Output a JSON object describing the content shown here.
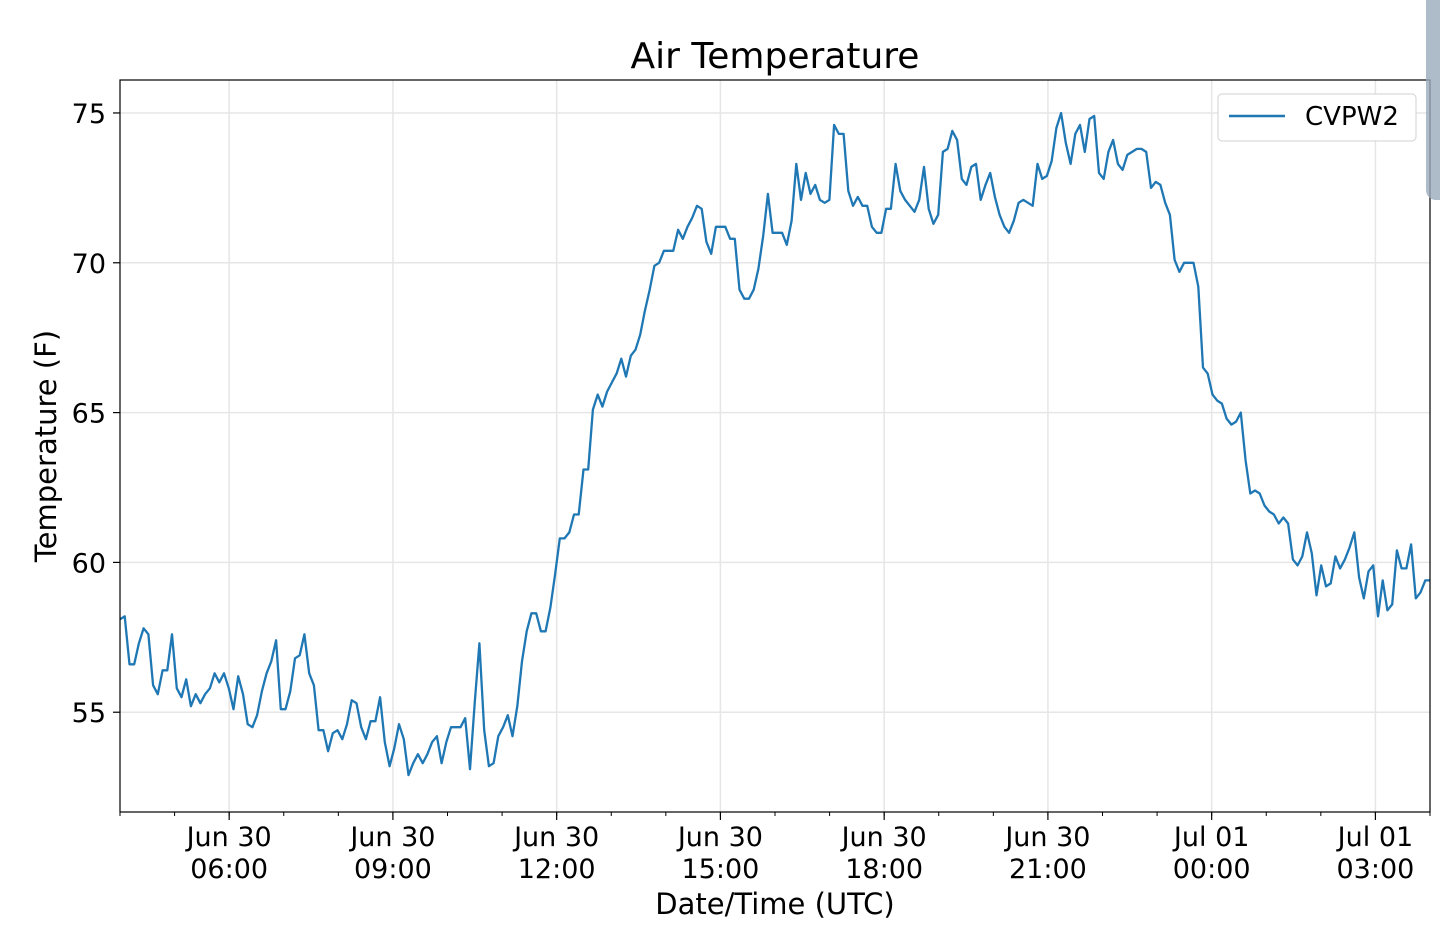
{
  "chart_data": {
    "type": "line",
    "title": "Air Temperature",
    "xlabel": "Date/Time (UTC)",
    "ylabel": "Temperature (F)",
    "x_units": "hours since Jun 30 00:00 UTC",
    "xlim": [
      4,
      28
    ],
    "ylim": [
      51.67,
      76.1
    ],
    "grid": true,
    "legend_position": "top-right",
    "y_ticks": [
      55,
      60,
      65,
      70,
      75
    ],
    "x_ticks": [
      {
        "value": 6,
        "line1": "Jun 30",
        "line2": "06:00"
      },
      {
        "value": 9,
        "line1": "Jun 30",
        "line2": "09:00"
      },
      {
        "value": 12,
        "line1": "Jun 30",
        "line2": "12:00"
      },
      {
        "value": 15,
        "line1": "Jun 30",
        "line2": "15:00"
      },
      {
        "value": 18,
        "line1": "Jun 30",
        "line2": "18:00"
      },
      {
        "value": 21,
        "line1": "Jun 30",
        "line2": "21:00"
      },
      {
        "value": 24,
        "line1": "Jul 01",
        "line2": "00:00"
      },
      {
        "value": 27,
        "line1": "Jul 01",
        "line2": "03:00"
      }
    ],
    "series": [
      {
        "name": "CVPW2",
        "color": "#1f77b4",
        "values": [
          58.1,
          58.2,
          56.6,
          56.6,
          57.3,
          57.8,
          57.6,
          55.9,
          55.6,
          56.4,
          56.4,
          57.6,
          55.8,
          55.5,
          56.1,
          55.2,
          55.6,
          55.3,
          55.6,
          55.8,
          56.3,
          56.0,
          56.3,
          55.8,
          55.1,
          56.2,
          55.6,
          54.6,
          54.5,
          54.9,
          55.7,
          56.3,
          56.7,
          57.4,
          55.1,
          55.1,
          55.7,
          56.8,
          56.9,
          57.6,
          56.3,
          55.9,
          54.4,
          54.4,
          53.7,
          54.3,
          54.4,
          54.1,
          54.6,
          55.4,
          55.3,
          54.5,
          54.1,
          54.7,
          54.7,
          55.5,
          54.0,
          53.2,
          53.8,
          54.6,
          54.1,
          52.9,
          53.3,
          53.6,
          53.3,
          53.6,
          54.0,
          54.2,
          53.3,
          54.0,
          54.5,
          54.5,
          54.5,
          54.8,
          53.1,
          55.3,
          57.3,
          54.4,
          53.2,
          53.3,
          54.2,
          54.5,
          54.9,
          54.2,
          55.2,
          56.7,
          57.7,
          58.3,
          58.3,
          57.7,
          57.7,
          58.5,
          59.6,
          60.8,
          60.8,
          61.0,
          61.6,
          61.6,
          63.1,
          63.1,
          65.1,
          65.6,
          65.2,
          65.7,
          66.0,
          66.3,
          66.8,
          66.2,
          66.9,
          67.1,
          67.6,
          68.4,
          69.1,
          69.9,
          70.0,
          70.4,
          70.4,
          70.4,
          71.1,
          70.8,
          71.2,
          71.5,
          71.9,
          71.8,
          70.7,
          70.3,
          71.2,
          71.2,
          71.2,
          70.8,
          70.8,
          69.1,
          68.8,
          68.8,
          69.1,
          69.8,
          70.9,
          72.3,
          71.0,
          71.0,
          71.0,
          70.6,
          71.4,
          73.3,
          72.1,
          73.0,
          72.3,
          72.6,
          72.1,
          72.0,
          72.1,
          74.6,
          74.3,
          74.3,
          72.4,
          71.9,
          72.2,
          71.9,
          71.9,
          71.2,
          71.0,
          71.0,
          71.8,
          71.8,
          73.3,
          72.4,
          72.1,
          71.9,
          71.7,
          72.1,
          73.2,
          71.8,
          71.3,
          71.6,
          73.7,
          73.8,
          74.4,
          74.1,
          72.8,
          72.6,
          73.2,
          73.3,
          72.1,
          72.6,
          73.0,
          72.2,
          71.6,
          71.2,
          71.0,
          71.4,
          72.0,
          72.1,
          72.0,
          71.9,
          73.3,
          72.8,
          72.9,
          73.4,
          74.5,
          75.0,
          74.0,
          73.3,
          74.3,
          74.6,
          73.7,
          74.8,
          74.9,
          73.0,
          72.8,
          73.7,
          74.1,
          73.3,
          73.1,
          73.6,
          73.7,
          73.8,
          73.8,
          73.7,
          72.5,
          72.7,
          72.6,
          72.0,
          71.6,
          70.1,
          69.7,
          70.0,
          70.0,
          70.0,
          69.2,
          66.5,
          66.3,
          65.6,
          65.4,
          65.3,
          64.8,
          64.6,
          64.7,
          65.0,
          63.4,
          62.3,
          62.4,
          62.3,
          61.9,
          61.7,
          61.6,
          61.3,
          61.5,
          61.3,
          60.1,
          59.9,
          60.2,
          61.0,
          60.3,
          58.9,
          59.9,
          59.2,
          59.3,
          60.2,
          59.8,
          60.1,
          60.5,
          61.0,
          59.5,
          58.8,
          59.7,
          59.9,
          58.2,
          59.4,
          58.4,
          58.6,
          60.4,
          59.8,
          59.8,
          60.6,
          58.8,
          59.0,
          59.4,
          59.4
        ]
      }
    ]
  }
}
